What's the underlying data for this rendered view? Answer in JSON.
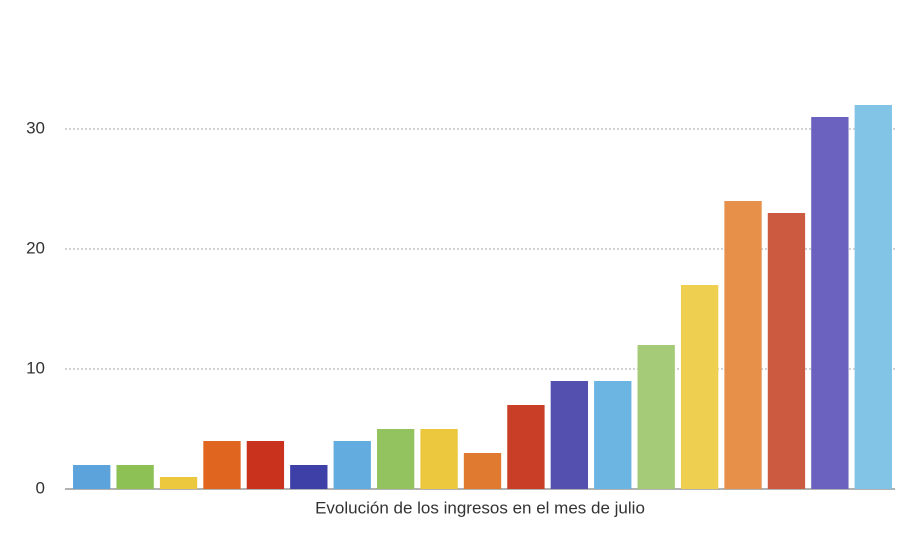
{
  "chart_data": {
    "type": "bar",
    "title": "Evolución de los ingresos en el mes de julio",
    "values": [
      2,
      2,
      1,
      4,
      4,
      2,
      4,
      5,
      5,
      3,
      7,
      9,
      9,
      12,
      17,
      24,
      23,
      31,
      32
    ],
    "colors": [
      "#5ca3dc",
      "#8dc155",
      "#ecc83e",
      "#e0651e",
      "#c9321c",
      "#3f3fa8",
      "#62ace0",
      "#93c35e",
      "#ecc83e",
      "#e07a30",
      "#c83e26",
      "#5350b0",
      "#6cb4e2",
      "#a5cb78",
      "#eecf50",
      "#e6904a",
      "#cc5a40",
      "#6a62be",
      "#82c4e6"
    ],
    "ylim": [
      0,
      40
    ],
    "yticks": [
      0,
      10,
      20,
      30
    ],
    "grid": true
  }
}
